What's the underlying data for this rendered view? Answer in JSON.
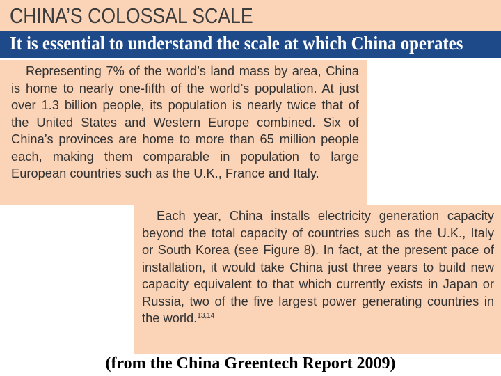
{
  "header": {
    "title": "CHINA’S COLOSSAL SCALE",
    "subtitle": "It is essential to understand the scale at which China operates"
  },
  "paragraphs": {
    "first": "Representing 7% of the world’s land mass by area, China is home to nearly one-fifth of the world’s population. At just over 1.3 billion people, its population is nearly twice that of the United States and Western Europe combined. Six of China’s provinces are home to more than 65 million people each, making them comparable in population to large European countries such as the U.K., France and Italy.",
    "second": "Each year, China installs electricity generation capacity beyond the total capacity of countries such as the U.K., Italy or South Korea (see Figure 8). In fact, at the present pace of installation, it would take China just three years to build new capacity equivalent to that which currently exists in Japan or Russia, two of the five largest power generating countries in the world.",
    "second_footnote": "13,14"
  },
  "source": "(from the China Greentech Report 2009)",
  "colors": {
    "panel": "#fbd3b7",
    "subtitle_bar": "#1f4a8a"
  }
}
